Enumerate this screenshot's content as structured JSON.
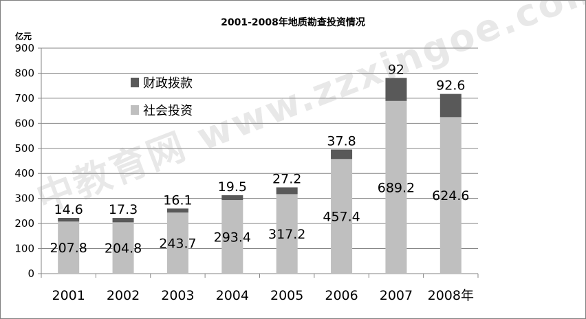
{
  "chart_data": {
    "type": "bar",
    "stacked": true,
    "title": "2001-2008年地质勘查投资情况",
    "ylabel": "亿元",
    "xlabel": "",
    "ylim": [
      0,
      900
    ],
    "yticks": [
      "0",
      "100",
      "200",
      "300",
      "400",
      "500",
      "600",
      "700",
      "800",
      "900"
    ],
    "categories": [
      "2001",
      "2002",
      "2003",
      "2004",
      "2005",
      "2006",
      "2007",
      "2008年"
    ],
    "series": [
      {
        "name": "社会投资",
        "color": "#bfbfbf",
        "values": [
          207.8,
          204.8,
          243.7,
          293.4,
          317.2,
          457.4,
          689.2,
          624.6
        ]
      },
      {
        "name": "财政拨款",
        "color": "#595959",
        "values": [
          14.6,
          17.3,
          16.1,
          19.5,
          27.2,
          37.8,
          92,
          92.6
        ]
      }
    ],
    "grid": true,
    "legend_position": "top-left"
  },
  "watermark": "中教育网 www.zzxingoe.com"
}
